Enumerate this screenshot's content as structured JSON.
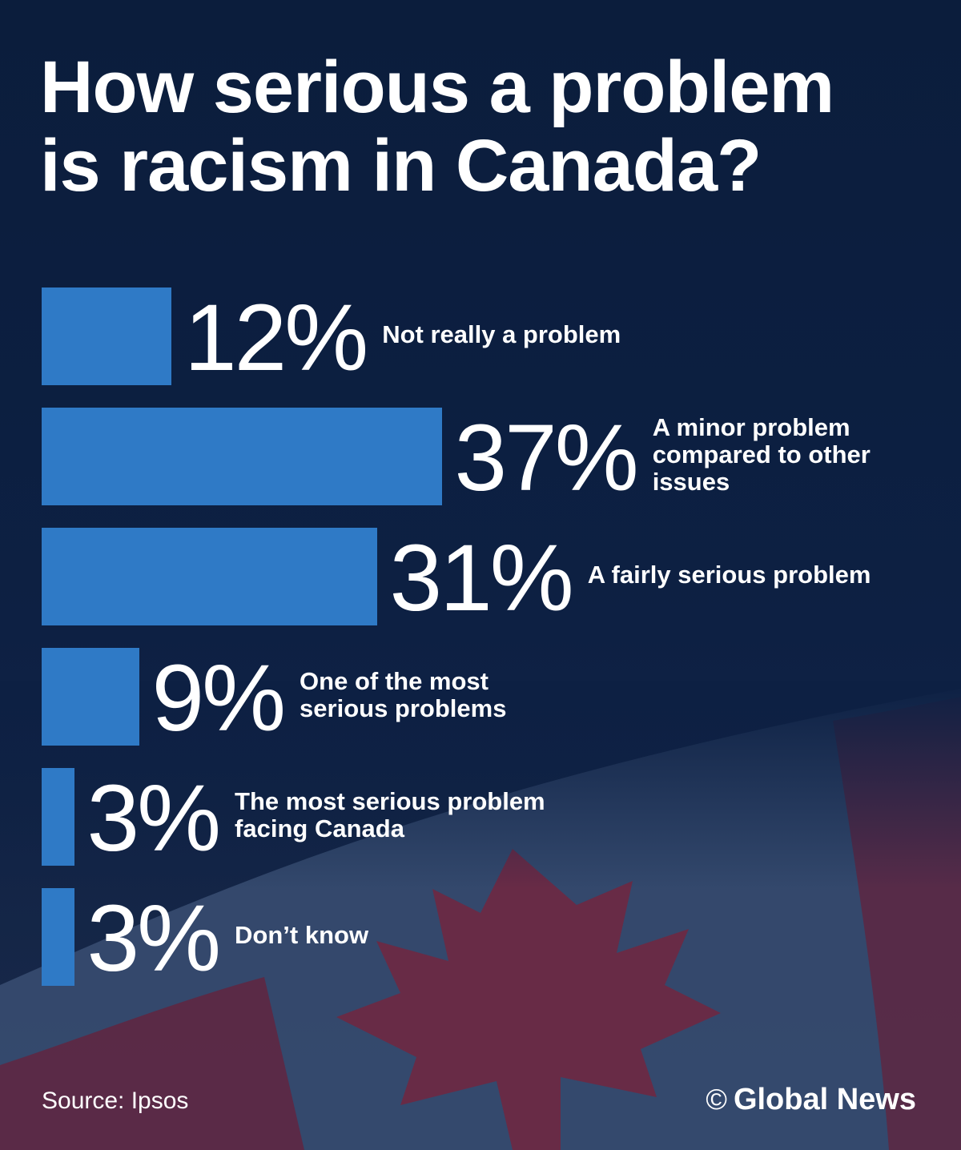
{
  "title_lines": [
    "How serious a problem",
    "is racism in Canada?"
  ],
  "chart_data": {
    "type": "bar",
    "orientation": "horizontal",
    "title": "How serious a problem is racism in Canada?",
    "categories": [
      "Not really a problem",
      "A minor problem compared to other issues",
      "A fairly serious problem",
      "One of the most serious problems",
      "The most serious problem facing Canada",
      "Don’t know"
    ],
    "display_labels": [
      "Not really a problem",
      "A minor problem\ncompared to other\nissues",
      "A fairly serious problem",
      "One of the most\nserious problems",
      "The most serious problem\nfacing Canada",
      "Don’t know"
    ],
    "values": [
      12,
      37,
      31,
      9,
      3,
      3
    ],
    "value_labels": [
      "12%",
      "37%",
      "31%",
      "9%",
      "3%",
      "3%"
    ],
    "unit": "%",
    "bar_color": "#2f7ac6",
    "legend": "none",
    "grid": false
  },
  "footer": {
    "source": "Source: Ipsos",
    "credit_symbol": "©",
    "credit": "Global News"
  },
  "colors": {
    "background": "#0e1f3d",
    "bar": "#2f7ac6",
    "flag_red": "#6b2a45",
    "flag_white": "#3f5478",
    "text": "#ffffff"
  }
}
